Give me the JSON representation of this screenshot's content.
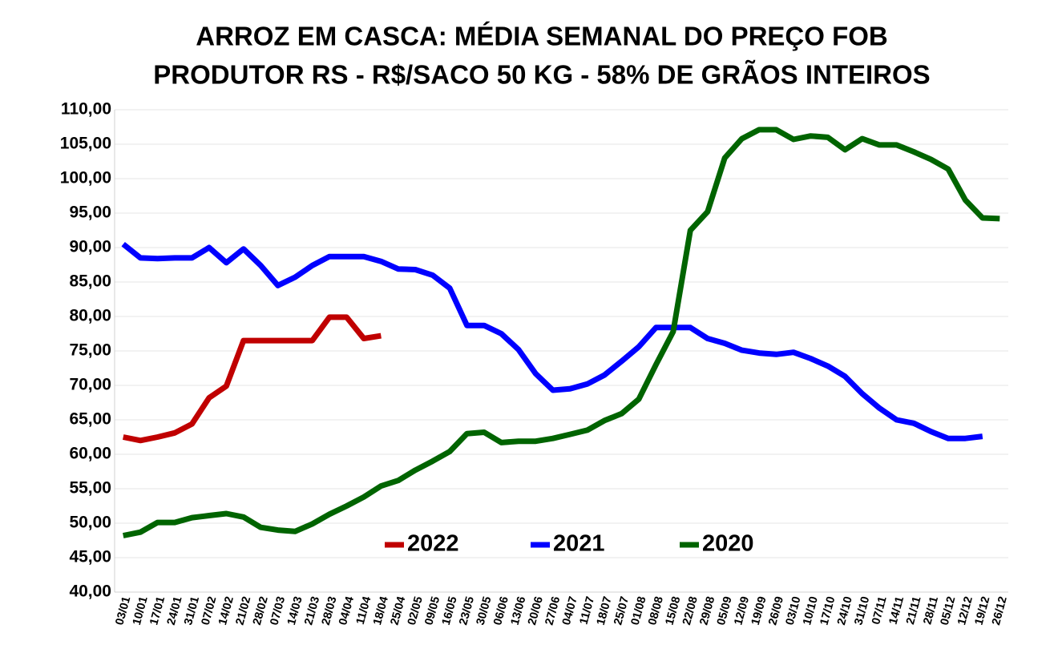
{
  "chart_data": {
    "type": "line",
    "title": [
      "ARROZ EM CASCA: MÉDIA SEMANAL DO PREÇO FOB",
      "PRODUTOR RS - R$/SACO 50 KG - 58% DE GRÃOS INTEIROS"
    ],
    "categories": [
      "03/01",
      "10/01",
      "17/01",
      "24/01",
      "31/01",
      "07/02",
      "14/02",
      "21/02",
      "28/02",
      "07/03",
      "14/03",
      "21/03",
      "28/03",
      "04/04",
      "11/04",
      "18/04",
      "25/04",
      "02/05",
      "09/05",
      "16/05",
      "23/05",
      "30/05",
      "06/06",
      "13/06",
      "20/06",
      "27/06",
      "04/07",
      "11/07",
      "18/07",
      "25/07",
      "01/08",
      "08/08",
      "15/08",
      "22/08",
      "29/08",
      "05/09",
      "12/09",
      "19/09",
      "26/09",
      "03/10",
      "10/10",
      "17/10",
      "24/10",
      "31/10",
      "07/11",
      "14/11",
      "21/11",
      "28/11",
      "05/12",
      "12/12",
      "19/12",
      "26/12"
    ],
    "series": [
      {
        "name": "2022",
        "color": "#c00000",
        "values": [
          62.5,
          62.0,
          62.5,
          63.1,
          64.4,
          68.2,
          69.9,
          76.5,
          76.5,
          76.5,
          76.5,
          76.5,
          79.9,
          79.9,
          76.8,
          77.2,
          null,
          null,
          null,
          null,
          null,
          null,
          null,
          null,
          null,
          null,
          null,
          null,
          null,
          null,
          null,
          null,
          null,
          null,
          null,
          null,
          null,
          null,
          null,
          null,
          null,
          null,
          null,
          null,
          null,
          null,
          null,
          null,
          null,
          null,
          null,
          null
        ]
      },
      {
        "name": "2021",
        "color": "#0000ff",
        "values": [
          90.5,
          88.5,
          88.4,
          88.5,
          88.5,
          90.0,
          87.8,
          89.8,
          87.4,
          84.5,
          85.7,
          87.4,
          88.7,
          88.7,
          88.7,
          88.0,
          86.9,
          86.8,
          86.0,
          84.1,
          78.7,
          78.7,
          77.5,
          75.2,
          71.7,
          69.3,
          69.5,
          70.2,
          71.5,
          73.5,
          75.6,
          78.4,
          78.4,
          78.4,
          76.8,
          76.1,
          75.1,
          74.7,
          74.5,
          74.8,
          73.9,
          72.8,
          71.3,
          68.8,
          66.7,
          65.0,
          64.5,
          63.3,
          62.3,
          62.3,
          62.6,
          null
        ]
      },
      {
        "name": "2020",
        "color": "#006400",
        "values": [
          48.2,
          48.7,
          50.1,
          50.1,
          50.8,
          51.1,
          51.4,
          50.9,
          49.4,
          49.0,
          48.8,
          49.9,
          51.3,
          52.5,
          53.8,
          55.4,
          56.2,
          57.7,
          59.0,
          60.4,
          63.0,
          63.2,
          61.7,
          61.9,
          61.9,
          62.3,
          62.9,
          63.5,
          64.9,
          65.9,
          68.0,
          73.0,
          77.8,
          92.5,
          95.2,
          103.0,
          105.8,
          107.1,
          107.1,
          105.7,
          106.2,
          106.0,
          104.2,
          105.8,
          104.9,
          104.9,
          103.9,
          102.8,
          101.4,
          96.9,
          94.3,
          94.2
        ]
      }
    ],
    "ylim": [
      40,
      110
    ],
    "yticks": [
      {
        "value": 40,
        "label": "40,00"
      },
      {
        "value": 45,
        "label": "45,00"
      },
      {
        "value": 50,
        "label": "50,00"
      },
      {
        "value": 55,
        "label": "55,00"
      },
      {
        "value": 60,
        "label": "60,00"
      },
      {
        "value": 65,
        "label": "65,00"
      },
      {
        "value": 70,
        "label": "70,00"
      },
      {
        "value": 75,
        "label": "75,00"
      },
      {
        "value": 80,
        "label": "80,00"
      },
      {
        "value": 85,
        "label": "85,00"
      },
      {
        "value": 90,
        "label": "90,00"
      },
      {
        "value": 95,
        "label": "95,00"
      },
      {
        "value": 100,
        "label": "100,00"
      },
      {
        "value": 105,
        "label": "105,00"
      },
      {
        "value": 110,
        "label": "110,00"
      }
    ],
    "grid": true,
    "legend": "bottom"
  }
}
